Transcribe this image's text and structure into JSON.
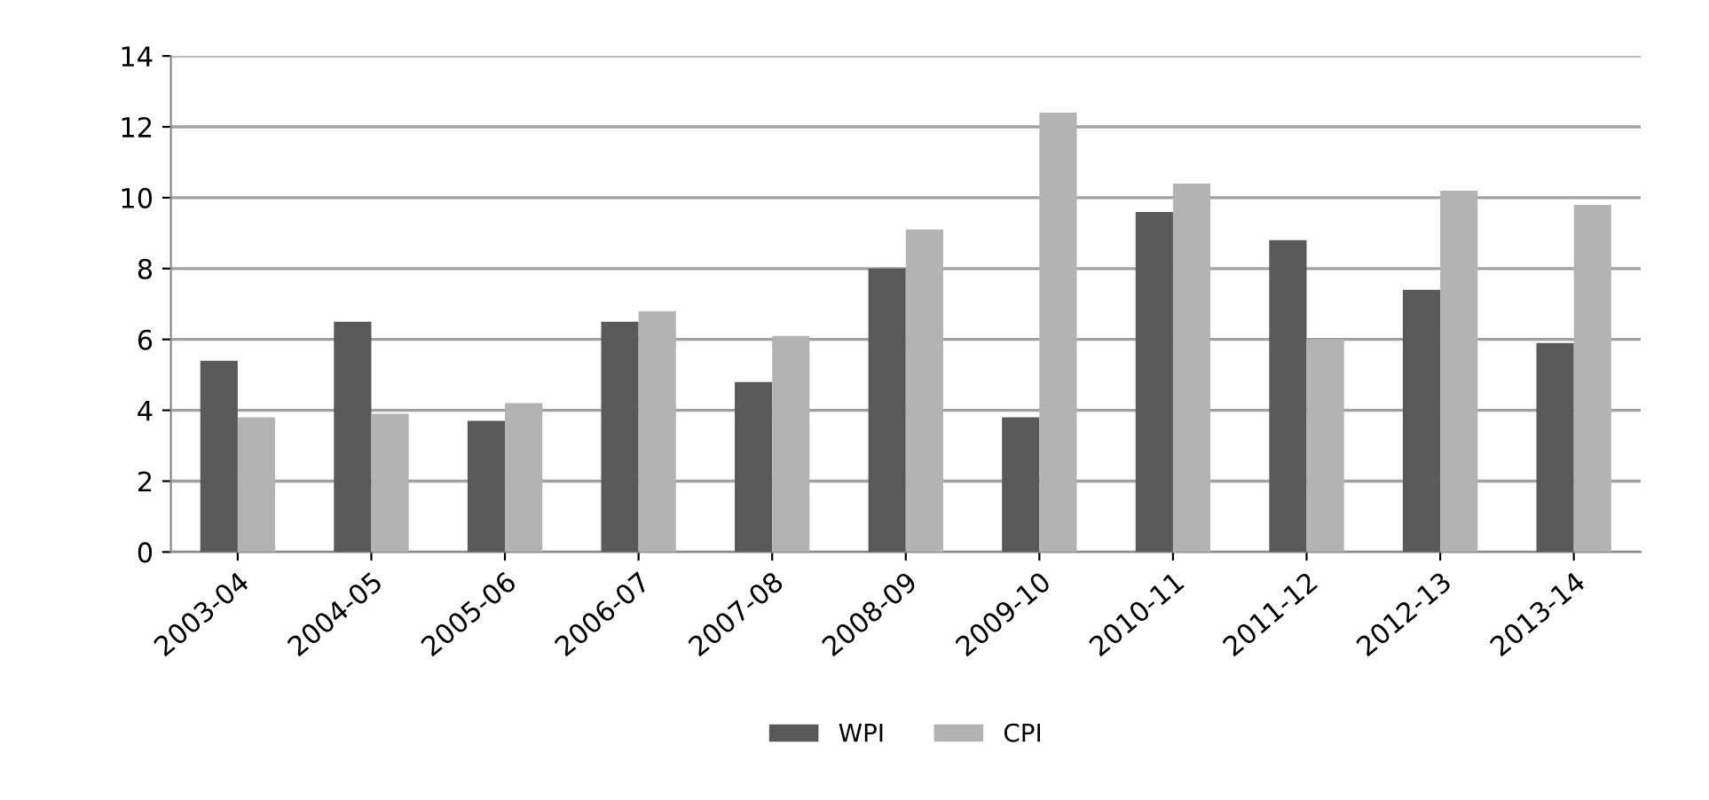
{
  "chart_data": {
    "type": "bar",
    "categories": [
      "2003-04",
      "2004-05",
      "2005-06",
      "2006-07",
      "2007-08",
      "2008-09",
      "2009-10",
      "2010-11",
      "2011-12",
      "2012-13",
      "2013-14"
    ],
    "series": [
      {
        "name": "WPI",
        "color": "#595959",
        "values": [
          5.4,
          6.5,
          3.7,
          6.5,
          4.8,
          8.0,
          3.8,
          9.6,
          8.8,
          7.4,
          5.9
        ]
      },
      {
        "name": "CPI",
        "color": "#b3b3b3",
        "values": [
          3.8,
          3.9,
          4.2,
          6.8,
          6.1,
          9.1,
          12.4,
          10.4,
          6.0,
          10.2,
          9.8
        ]
      }
    ],
    "ylim": [
      0,
      14
    ],
    "yticks": [
      0,
      2,
      4,
      6,
      8,
      10,
      12,
      14
    ],
    "grid": "y",
    "legend": "bottom"
  }
}
